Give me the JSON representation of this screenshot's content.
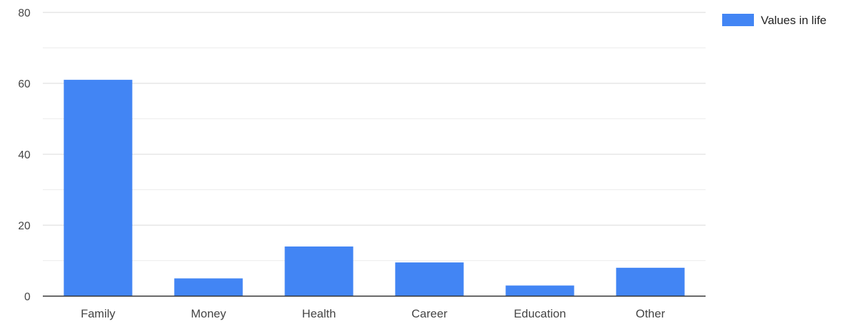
{
  "chart_data": {
    "type": "bar",
    "categories": [
      "Family",
      "Money",
      "Health",
      "Career",
      "Education",
      "Other"
    ],
    "series": [
      {
        "name": "Values in life",
        "values": [
          61,
          5,
          14,
          9.5,
          3,
          8
        ],
        "color": "#4285f4"
      }
    ],
    "ylim": [
      0,
      80
    ],
    "y_major_ticks": [
      0,
      20,
      40,
      60,
      80
    ],
    "y_minor_step": 10,
    "grid": true,
    "legend_position": "right",
    "colors": {
      "bar": "#4285f4",
      "gridline_major": "#d9d9d9",
      "gridline_minor": "#ececec",
      "axis": "#333333",
      "text": "#444444"
    }
  }
}
